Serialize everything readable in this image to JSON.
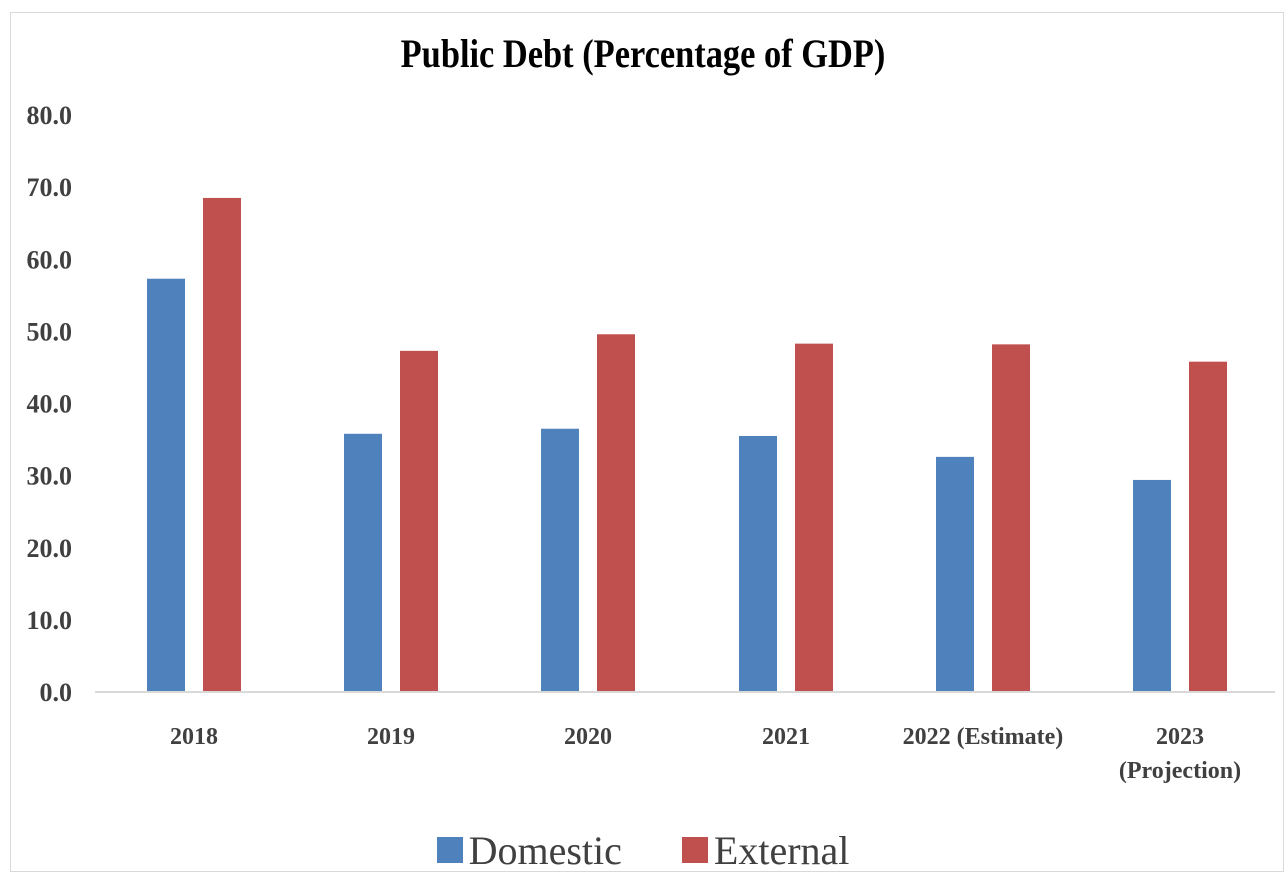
{
  "chart_data": {
    "type": "bar",
    "title": "Public Debt (Percentage of GDP)",
    "categories": [
      [
        "2018"
      ],
      [
        "2019"
      ],
      [
        "2020"
      ],
      [
        "2021"
      ],
      [
        "2022 (Estimate)"
      ],
      [
        "2023",
        "(Projection)"
      ]
    ],
    "series": [
      {
        "name": "Domestic",
        "color": "#4f81bd",
        "values": [
          57.3,
          35.8,
          36.5,
          35.5,
          32.6,
          29.4
        ]
      },
      {
        "name": "External",
        "color": "#c0504d",
        "values": [
          68.5,
          47.3,
          49.6,
          48.3,
          48.2,
          45.8
        ]
      }
    ],
    "yticks": [
      "0.0",
      "10.0",
      "20.0",
      "30.0",
      "40.0",
      "50.0",
      "60.0",
      "70.0",
      "80.0"
    ],
    "ylim": [
      0,
      80
    ],
    "grid": false,
    "legend_position": "bottom"
  }
}
